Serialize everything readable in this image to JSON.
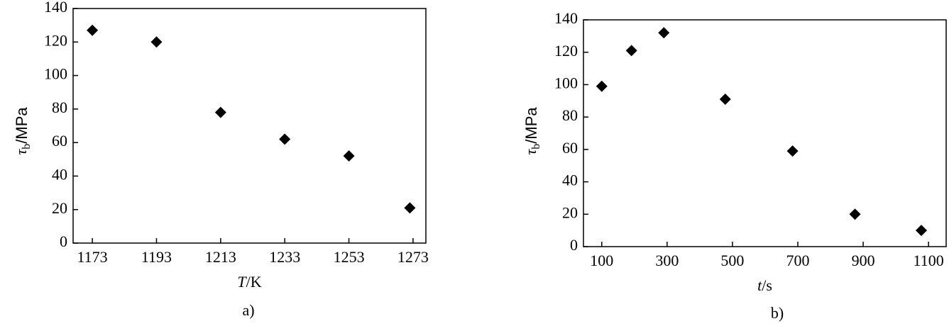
{
  "chart_data": [
    {
      "type": "scatter",
      "caption": "a)",
      "xlabel_symbol": "T",
      "xlabel_unit": "/K",
      "ylabel_symbol": "τ",
      "ylabel_subscript": "b",
      "ylabel_unit": "/MPa",
      "x": [
        1173,
        1193,
        1213,
        1233,
        1253,
        1272
      ],
      "values": [
        127,
        120,
        78,
        62,
        52,
        21
      ],
      "color": "#000000",
      "xlim": [
        1167,
        1277
      ],
      "xticks": [
        1173,
        1193,
        1213,
        1233,
        1253,
        1273
      ],
      "ylim": [
        0,
        140
      ],
      "yticks": [
        0,
        20,
        40,
        60,
        80,
        100,
        120,
        140
      ]
    },
    {
      "type": "scatter",
      "caption": "b)",
      "xlabel_symbol": "t",
      "xlabel_unit": "/s",
      "ylabel_symbol": "τ",
      "ylabel_subscript": "b",
      "ylabel_unit": "/MPa",
      "x": [
        100,
        191,
        290,
        478,
        684,
        875,
        1078
      ],
      "values": [
        99,
        121,
        132,
        91,
        59,
        20,
        10
      ],
      "color": "#000000",
      "xlim": [
        44,
        1154
      ],
      "xticks": [
        100,
        300,
        500,
        700,
        900,
        1100
      ],
      "ylim": [
        0,
        140
      ],
      "yticks": [
        0,
        20,
        40,
        60,
        80,
        100,
        120,
        140
      ]
    }
  ]
}
